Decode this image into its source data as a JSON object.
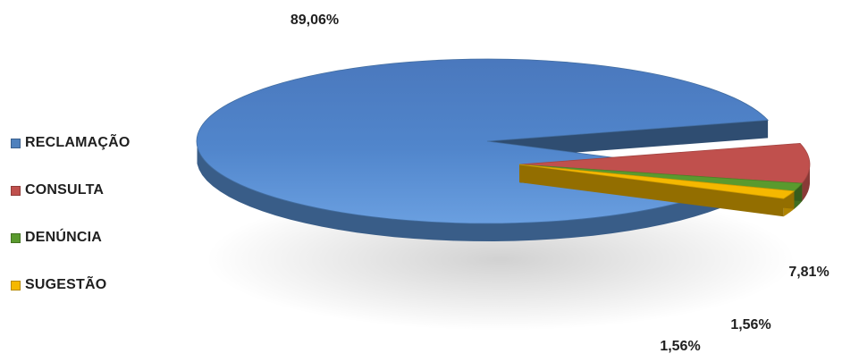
{
  "chart_data": {
    "type": "pie",
    "title": "",
    "categories": [
      "RECLAMAÇÃO",
      "CONSULTA",
      "DENÚNCIA",
      "SUGESTÃO"
    ],
    "values": [
      89.06,
      7.81,
      1.56,
      1.56
    ],
    "data_labels": [
      "89,06%",
      "7,81%",
      "1,56%",
      "1,56%"
    ],
    "colors": [
      "#4f81bd",
      "#c0504d",
      "#5a9a2e",
      "#f5b800"
    ],
    "legend_position": "left",
    "exploded": true,
    "style": "3d"
  }
}
